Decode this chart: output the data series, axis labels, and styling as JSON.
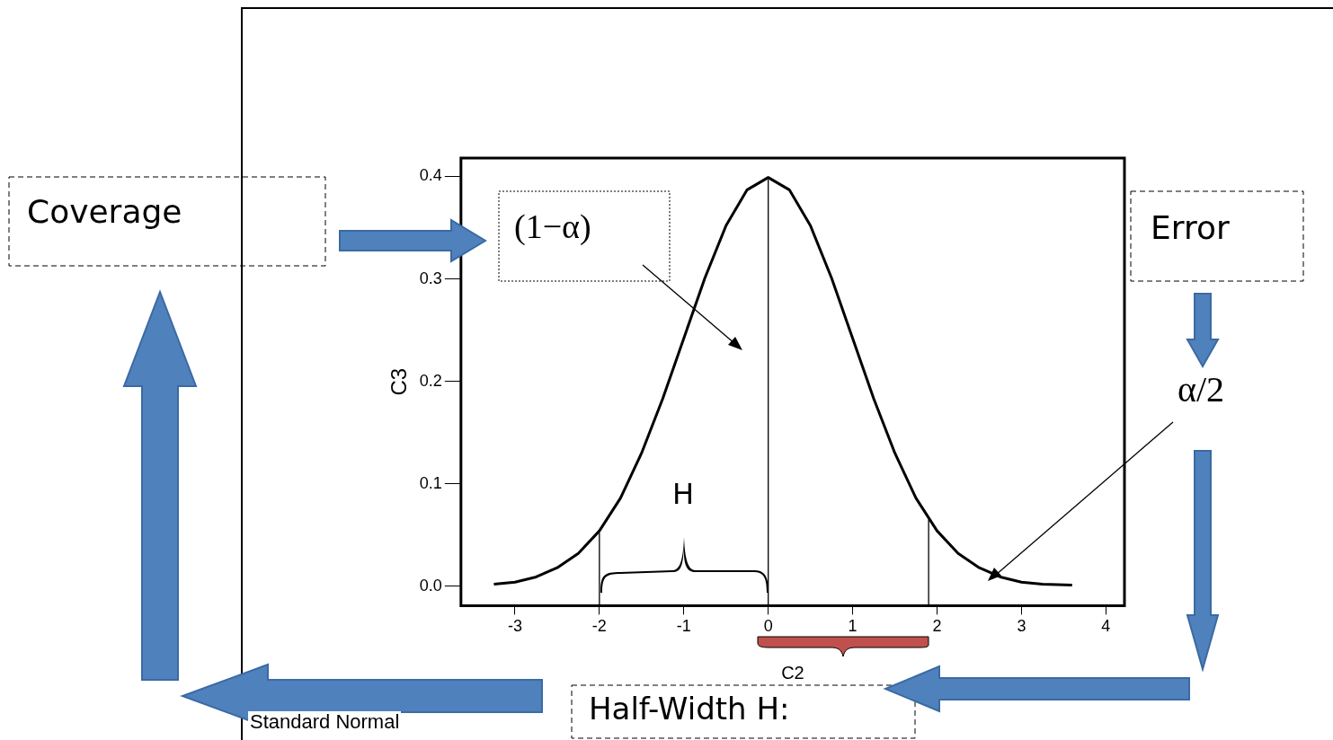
{
  "chart_data": {
    "type": "line",
    "xlabel": "C2",
    "ylabel": "C3",
    "series": [
      {
        "color": "#000000",
        "x": [
          -3.25,
          -3,
          -2.75,
          -2.5,
          -2.25,
          -2,
          -1.75,
          -1.5,
          -1.25,
          -1,
          -0.75,
          -0.5,
          -0.25,
          0,
          0.25,
          0.5,
          0.75,
          1,
          1.25,
          1.5,
          1.75,
          2,
          2.25,
          2.5,
          2.75,
          3,
          3.25,
          3.6
        ],
        "values": [
          0.002,
          0.004,
          0.009,
          0.018,
          0.032,
          0.054,
          0.086,
          0.13,
          0.183,
          0.242,
          0.301,
          0.352,
          0.387,
          0.399,
          0.387,
          0.352,
          0.301,
          0.242,
          0.183,
          0.13,
          0.086,
          0.054,
          0.032,
          0.018,
          0.009,
          0.004,
          0.002,
          0.001
        ]
      }
    ],
    "xlim": [
      -3.64,
      4.22
    ],
    "xticks": [
      -3,
      -2,
      -1,
      0,
      1,
      2,
      3,
      4
    ],
    "ylim": [
      -0.019,
      0.418
    ],
    "yticks": [
      {
        "value": 0,
        "label": "0.0"
      },
      0.1,
      0.2,
      0.3,
      0.4
    ],
    "ref_lines": [
      {
        "axis": "x",
        "value": -2
      },
      {
        "axis": "x",
        "value": 0
      },
      {
        "axis": "x",
        "value": 1.9
      }
    ],
    "grid": false,
    "legend": false,
    "marker": "none",
    "line_style": "solid",
    "annotations": [
      "Coverage",
      "(1−α)",
      "Error",
      "α/2",
      "H",
      "Half-Width H:",
      "Standard Normal"
    ]
  }
}
